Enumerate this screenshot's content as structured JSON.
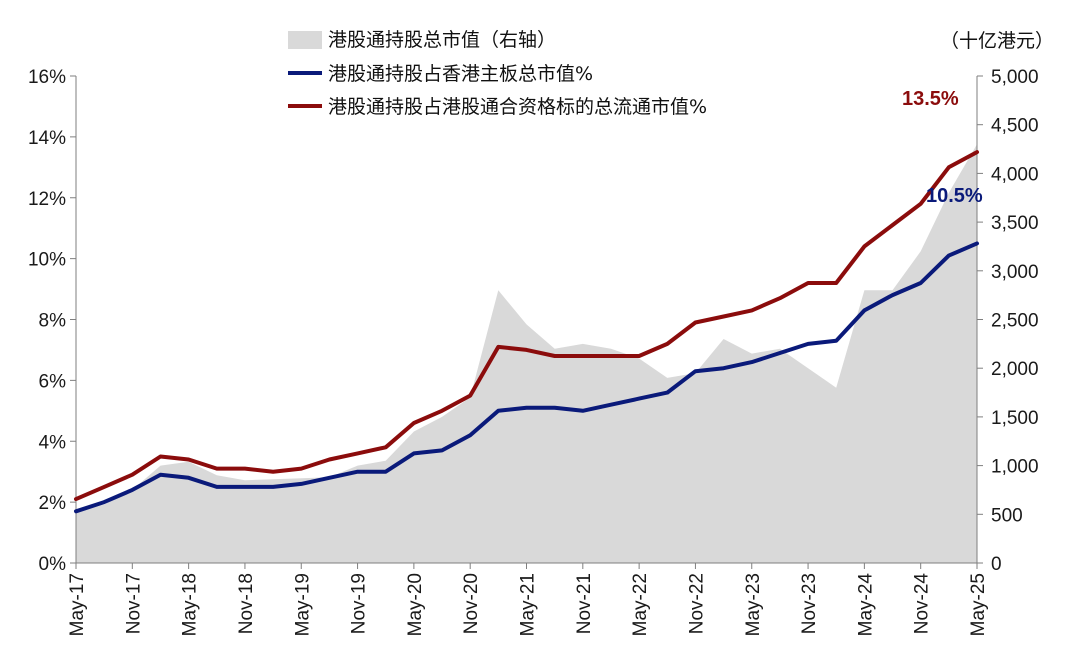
{
  "chart_data": {
    "type": "area+line",
    "x_start": "2017-05",
    "x_end": "2025-05",
    "x_tick_labels": [
      "May-17",
      "Nov-17",
      "May-18",
      "Nov-18",
      "May-19",
      "Nov-19",
      "May-20",
      "Nov-20",
      "May-21",
      "Nov-21",
      "May-22",
      "Nov-22",
      "May-23",
      "Nov-23",
      "May-24",
      "Nov-24",
      "May-25"
    ],
    "y_left_ticks": [
      "0%",
      "2%",
      "4%",
      "6%",
      "8%",
      "10%",
      "12%",
      "14%",
      "16%"
    ],
    "y_left_range": [
      0,
      16
    ],
    "y_right_ticks": [
      "0",
      "500",
      "1,000",
      "1,500",
      "2,000",
      "2,500",
      "3,000",
      "3,500",
      "4,000",
      "4,500",
      "5,000"
    ],
    "y_right_range": [
      0,
      5000
    ],
    "y_right_unit": "（十亿港元）",
    "legend_position": "top-center",
    "series": [
      {
        "name": "港股通持股总市值（右轴）",
        "type": "area",
        "axis": "right",
        "color": "#d9d9d9",
        "x": [
          "2017-05",
          "2017-08",
          "2017-11",
          "2018-02",
          "2018-05",
          "2018-08",
          "2018-11",
          "2019-02",
          "2019-05",
          "2019-08",
          "2019-11",
          "2020-02",
          "2020-05",
          "2020-08",
          "2020-11",
          "2021-02",
          "2021-05",
          "2021-08",
          "2021-11",
          "2022-02",
          "2022-05",
          "2022-08",
          "2022-11",
          "2023-02",
          "2023-05",
          "2023-08",
          "2023-11",
          "2024-02",
          "2024-05",
          "2024-08",
          "2024-11",
          "2025-02",
          "2025-05"
        ],
        "values": [
          520,
          600,
          750,
          1000,
          1040,
          900,
          850,
          860,
          870,
          880,
          1000,
          1050,
          1350,
          1500,
          1700,
          2800,
          2450,
          2200,
          2250,
          2200,
          2100,
          1900,
          1950,
          2300,
          2150,
          2200,
          2000,
          1800,
          2800,
          2800,
          3200,
          3800,
          4300
        ]
      },
      {
        "name": "港股通持股占香港主板总市值%",
        "type": "line",
        "axis": "left",
        "color": "#0a1a7a",
        "x": [
          "2017-05",
          "2017-08",
          "2017-11",
          "2018-02",
          "2018-05",
          "2018-08",
          "2018-11",
          "2019-02",
          "2019-05",
          "2019-08",
          "2019-11",
          "2020-02",
          "2020-05",
          "2020-08",
          "2020-11",
          "2021-02",
          "2021-05",
          "2021-08",
          "2021-11",
          "2022-02",
          "2022-05",
          "2022-08",
          "2022-11",
          "2023-02",
          "2023-05",
          "2023-08",
          "2023-11",
          "2024-02",
          "2024-05",
          "2024-08",
          "2024-11",
          "2025-02",
          "2025-05"
        ],
        "values": [
          1.7,
          2.0,
          2.4,
          2.9,
          2.8,
          2.5,
          2.5,
          2.5,
          2.6,
          2.8,
          3.0,
          3.0,
          3.6,
          3.7,
          4.2,
          5.0,
          5.1,
          5.1,
          5.0,
          5.2,
          5.4,
          5.6,
          6.3,
          6.4,
          6.6,
          6.9,
          7.2,
          7.3,
          8.3,
          8.8,
          9.2,
          10.1,
          10.5
        ]
      },
      {
        "name": "港股通持股占港股通合资格标的总流通市值%",
        "type": "line",
        "axis": "left",
        "color": "#8b0c0c",
        "x": [
          "2017-05",
          "2017-08",
          "2017-11",
          "2018-02",
          "2018-05",
          "2018-08",
          "2018-11",
          "2019-02",
          "2019-05",
          "2019-08",
          "2019-11",
          "2020-02",
          "2020-05",
          "2020-08",
          "2020-11",
          "2021-02",
          "2021-05",
          "2021-08",
          "2021-11",
          "2022-02",
          "2022-05",
          "2022-08",
          "2022-11",
          "2023-02",
          "2023-05",
          "2023-08",
          "2023-11",
          "2024-02",
          "2024-05",
          "2024-08",
          "2024-11",
          "2025-02",
          "2025-05"
        ],
        "values": [
          2.1,
          2.5,
          2.9,
          3.5,
          3.4,
          3.1,
          3.1,
          3.0,
          3.1,
          3.4,
          3.6,
          3.8,
          4.6,
          5.0,
          5.5,
          7.1,
          7.0,
          6.8,
          6.8,
          6.8,
          6.8,
          7.2,
          7.9,
          8.1,
          8.3,
          8.7,
          9.2,
          9.2,
          10.4,
          11.1,
          11.8,
          13.0,
          13.5
        ]
      }
    ],
    "annotations": [
      {
        "text": "13.5%",
        "color": "#8b0c0c"
      },
      {
        "text": "10.5%",
        "color": "#0a1a7a"
      }
    ]
  }
}
